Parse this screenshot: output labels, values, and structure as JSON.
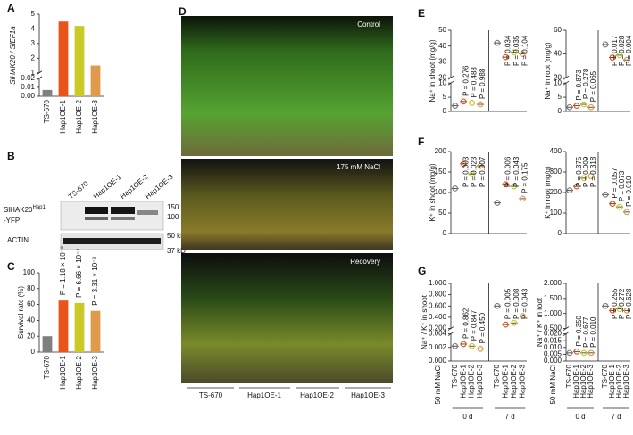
{
  "panel_labels": [
    "A",
    "B",
    "C",
    "D",
    "E",
    "F",
    "G"
  ],
  "blot": {
    "lanes": [
      "TS-670",
      "Hap1OE-1",
      "Hap1OE-2",
      "Hap1OE-3"
    ],
    "target": {
      "name": "SlHAK20",
      "superscript": "Hap1",
      "suffix": "-YFP"
    },
    "control": "ACTIN",
    "markers": [
      "150 kD",
      "100 kD",
      "50 kD",
      "37 kD"
    ]
  },
  "photos": {
    "conditions": [
      "Control",
      "175 mM NaCl",
      "Recovery"
    ],
    "genotypes": [
      "TS-670",
      "Hap1OE-1",
      "Hap1OE-2",
      "Hap1OE-3"
    ]
  },
  "chart_data": [
    {
      "type": "bar",
      "ylabel": "SlHAK20 / SlEF1a",
      "categories": [
        "TS-670",
        "Hap1OE-1",
        "Hap1OE-2",
        "Hap1OE-3"
      ],
      "values": [
        0.007,
        4.5,
        4.2,
        1.5
      ],
      "colors": [
        "#7f7f7f",
        "#e8541a",
        "#c9c92a",
        "#e09a4c"
      ],
      "segments": [
        {
          "ylim": [
            0,
            0.02
          ],
          "yticks": [
            {
              "value": 0,
              "label": "0.00"
            },
            {
              "value": 0.01,
              "label": "0.01"
            },
            {
              "value": 0.02,
              "label": "0.02"
            }
          ]
        },
        {
          "ylim": [
            1,
            5
          ],
          "yticks": [
            1,
            2,
            3,
            4,
            5
          ]
        }
      ]
    },
    {
      "type": "bar",
      "ylabel": "Survival rate (%)",
      "categories": [
        "TS-670",
        "Hap1OE-1",
        "Hap1OE-2",
        "Hap1OE-3"
      ],
      "values": [
        20,
        65,
        62,
        52
      ],
      "annotations": [
        null,
        "P = 1.18 × 10⁻³",
        "P = 6.66 × 10⁻⁴",
        "P = 3.31 × 10⁻³"
      ],
      "colors": [
        "#7f7f7f",
        "#e8541a",
        "#c9c92a",
        "#e09a4c"
      ],
      "segments": [
        {
          "ylim": [
            0,
            100
          ],
          "yticks": [
            0,
            20,
            40,
            60,
            80,
            100
          ]
        }
      ]
    },
    {
      "type": "dot",
      "ylabel": "Na⁺ in shoot (mg/g)",
      "values": [
        2,
        3.5,
        3,
        2.5,
        42,
        33,
        36,
        35
      ],
      "annotations": [
        null,
        "P = 0.276",
        "P = 0.483",
        "P = 0.988",
        null,
        "P = 0.034",
        "P = 0.035",
        "P = 0.104"
      ],
      "colors": [
        "#7f7f7f",
        "#e8541a",
        "#c9c92a",
        "#e09a4c"
      ],
      "segments": [
        {
          "ylim": [
            0,
            10
          ],
          "yticks": [
            0,
            5,
            10
          ]
        },
        {
          "ylim": [
            20,
            50
          ],
          "yticks": [
            20,
            30,
            40,
            50
          ]
        }
      ]
    },
    {
      "type": "dot",
      "ylabel": "Na⁺ in root (mg/g)",
      "values": [
        1.5,
        2,
        2.5,
        1.5,
        48,
        37,
        39,
        35
      ],
      "annotations": [
        null,
        "P = 0.873",
        "P = 0.278",
        "P = 0.065",
        null,
        "P = 0.017",
        "P = 0.028",
        "P = 0.004"
      ],
      "colors": [
        "#7f7f7f",
        "#e8541a",
        "#c9c92a",
        "#e09a4c"
      ],
      "segments": [
        {
          "ylim": [
            0,
            10
          ],
          "yticks": [
            0,
            5,
            10
          ]
        },
        {
          "ylim": [
            20,
            60
          ],
          "yticks": [
            20,
            40,
            60
          ]
        }
      ]
    },
    {
      "type": "dot",
      "ylabel": "K⁺ in shoot (mg/g)",
      "values": [
        110,
        170,
        145,
        165,
        75,
        120,
        115,
        85
      ],
      "annotations": [
        null,
        "P = 0.003",
        "P = 0.023",
        "P = 0.007",
        null,
        "P = 0.006",
        "P = 0.043",
        "P = 0.175"
      ],
      "colors": [
        "#7f7f7f",
        "#e8541a",
        "#c9c92a",
        "#e09a4c"
      ],
      "segments": [
        {
          "ylim": [
            0,
            200
          ],
          "yticks": [
            0,
            50,
            100,
            150,
            200
          ]
        }
      ]
    },
    {
      "type": "dot",
      "ylabel": "K⁺ in root (mg/g)",
      "values": [
        210,
        230,
        270,
        280,
        190,
        145,
        130,
        105
      ],
      "annotations": [
        null,
        "P = 0.375",
        "P = 0.009",
        "P = 0.318",
        null,
        "P = 0.057",
        "P = 0.073",
        "P = 0.010"
      ],
      "colors": [
        "#7f7f7f",
        "#e8541a",
        "#c9c92a",
        "#e09a4c"
      ],
      "segments": [
        {
          "ylim": [
            0,
            400
          ],
          "yticks": [
            0,
            100,
            200,
            300,
            400
          ]
        }
      ]
    },
    {
      "type": "dot",
      "ylabel": "Na⁺ / K⁺ in shoot",
      "categories": [
        "TS-670",
        "Hap1OE-1",
        "Hap1OE-2",
        "Hap1OE-3",
        "TS-670",
        "Hap1OE-1",
        "Hap1OE-2",
        "Hap1OE-3"
      ],
      "treatment": "50 mM NaCl",
      "groups": [
        "0 d",
        "7 d"
      ],
      "values": [
        0.0022,
        0.0025,
        0.0022,
        0.0018,
        0.6,
        0.27,
        0.3,
        0.42
      ],
      "annotations": [
        null,
        "P = 0.862",
        "P = 0.847",
        "P = 0.450",
        null,
        "P = 0.005",
        "P = 0.008",
        "P = 0.043"
      ],
      "colors": [
        "#7f7f7f",
        "#e8541a",
        "#c9c92a",
        "#e09a4c"
      ],
      "segments": [
        {
          "ylim": [
            0,
            0.004
          ],
          "yticks": [
            {
              "value": 0,
              "label": "0.000"
            },
            {
              "value": 0.002,
              "label": "0.002"
            },
            {
              "value": 0.004,
              "label": "0.004"
            }
          ]
        },
        {
          "ylim": [
            0.2,
            1
          ],
          "yticks": [
            {
              "value": 0.2,
              "label": "0.200"
            },
            {
              "value": 0.4,
              "label": "0.400"
            },
            {
              "value": 0.6,
              "label": "0.600"
            },
            {
              "value": 0.8,
              "label": "0.800"
            },
            {
              "value": 1,
              "label": "1.000"
            }
          ]
        }
      ]
    },
    {
      "type": "dot",
      "ylabel": "Na⁺ / K⁺ in root",
      "categories": [
        "TS-670",
        "Hap1OE-1",
        "Hap1OE-2",
        "Hap1OE-3",
        "TS-670",
        "Hap1OE-1",
        "Hap1OE-2",
        "Hap1OE-3"
      ],
      "treatment": "50 mM NaCl",
      "groups": [
        "0 d",
        "7 d"
      ],
      "values": [
        0.006,
        0.007,
        0.006,
        0.006,
        1.25,
        1.1,
        1.15,
        1.1
      ],
      "annotations": [
        null,
        "P = 0.350",
        "P = 0.677",
        "P = 0.010",
        null,
        "P = 0.255",
        "P = 0.272",
        "P = 0.628"
      ],
      "colors": [
        "#7f7f7f",
        "#e8541a",
        "#c9c92a",
        "#e09a4c"
      ],
      "segments": [
        {
          "ylim": [
            0,
            0.02
          ],
          "yticks": [
            {
              "value": 0,
              "label": "0.000"
            },
            {
              "value": 0.005,
              "label": "0.005"
            },
            {
              "value": 0.01,
              "label": "0.010"
            },
            {
              "value": 0.015,
              "label": "0.015"
            },
            {
              "value": 0.02,
              "label": "0.020"
            }
          ]
        },
        {
          "ylim": [
            0.5,
            2
          ],
          "yticks": [
            {
              "value": 0.5,
              "label": "0.500"
            },
            {
              "value": 1,
              "label": "1.000"
            },
            {
              "value": 1.5,
              "label": "1.500"
            },
            {
              "value": 2,
              "label": "2.000"
            }
          ]
        }
      ]
    }
  ]
}
